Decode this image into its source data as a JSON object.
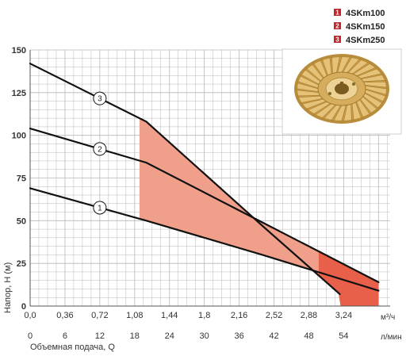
{
  "chart_data": {
    "type": "line",
    "ylabel": "Напор, Н (м)",
    "xlabel": "Объемная подача, Q",
    "x_unit_top": "м³/ч",
    "x_unit_bottom": "л/мин",
    "ylim": [
      0,
      150
    ],
    "xlim": [
      0,
      3.72
    ],
    "y_ticks": [
      "0",
      "25",
      "50",
      "75",
      "100",
      "125",
      "150"
    ],
    "x_ticks_top": [
      "0,0",
      "0,36",
      "0,72",
      "1,08",
      "1,44",
      "1,8",
      "2,16",
      "2,52",
      "2,88",
      "3,24"
    ],
    "x_ticks_bottom": [
      "0",
      "6",
      "12",
      "18",
      "24",
      "30",
      "36",
      "42",
      "48",
      "54"
    ],
    "grid": true,
    "legend": [
      {
        "num": "1",
        "name": "4SKm100"
      },
      {
        "num": "2",
        "name": "4SKm150"
      },
      {
        "num": "3",
        "name": "4SKm250"
      }
    ],
    "series": [
      {
        "name": "4SKm100",
        "label": "1",
        "x": [
          0.0,
          1.2,
          2.4,
          3.6
        ],
        "y": [
          69,
          50,
          30,
          9
        ]
      },
      {
        "name": "4SKm150",
        "label": "2",
        "x": [
          0.0,
          1.2,
          2.4,
          3.6
        ],
        "y": [
          104,
          84,
          49,
          14
        ]
      },
      {
        "name": "4SKm250",
        "label": "3",
        "x": [
          0.0,
          1.2,
          2.4,
          3.2
        ],
        "y": [
          142,
          108,
          47,
          7
        ]
      }
    ],
    "colors": {
      "curve": "#111111",
      "fill_light": "#f0a08a",
      "fill_dark": "#e8604a",
      "grid": "#b8b8b8",
      "legend_badge": "#c0272d"
    }
  }
}
